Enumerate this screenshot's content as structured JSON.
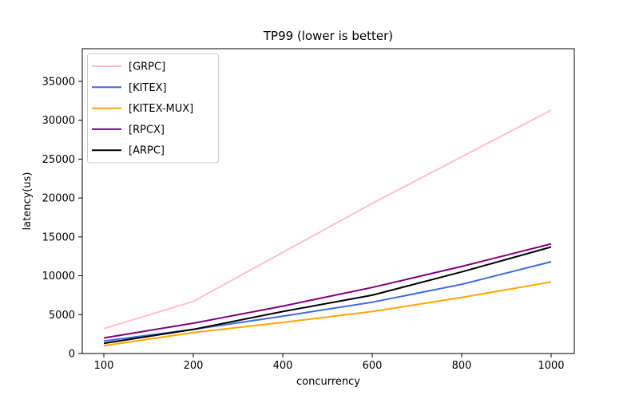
{
  "figure": {
    "background": "#ffffff",
    "frame_color": "#000000"
  },
  "chart_data": {
    "type": "line",
    "title": "TP99 (lower is better)",
    "xlabel": "concurrency",
    "ylabel": "latency(us)",
    "categories": [
      "100",
      "200",
      "400",
      "600",
      "800",
      "1000"
    ],
    "x_axis_note": "categories are evenly spaced (categorical axis)",
    "series": [
      {
        "name": "[GRPC]",
        "color": "#FFC0CB",
        "values": [
          3200,
          6700,
          13000,
          19300,
          25300,
          31300
        ]
      },
      {
        "name": "[KITEX]",
        "color": "#4169E1",
        "values": [
          1600,
          3100,
          4800,
          6600,
          8900,
          11800
        ]
      },
      {
        "name": "[KITEX-MUX]",
        "color": "#FFA500",
        "values": [
          1000,
          2700,
          4000,
          5400,
          7200,
          9200
        ]
      },
      {
        "name": "[RPCX]",
        "color": "#800080",
        "values": [
          2000,
          3900,
          6100,
          8500,
          11200,
          14100
        ]
      },
      {
        "name": "[ARPC]",
        "color": "#000000",
        "values": [
          1300,
          3100,
          5400,
          7500,
          10500,
          13700
        ]
      }
    ],
    "yticks": [
      0,
      5000,
      10000,
      15000,
      20000,
      25000,
      30000,
      35000
    ],
    "ylim": [
      0,
      39200
    ],
    "grid": false,
    "legend_position": "upper left",
    "line_width": 2
  }
}
